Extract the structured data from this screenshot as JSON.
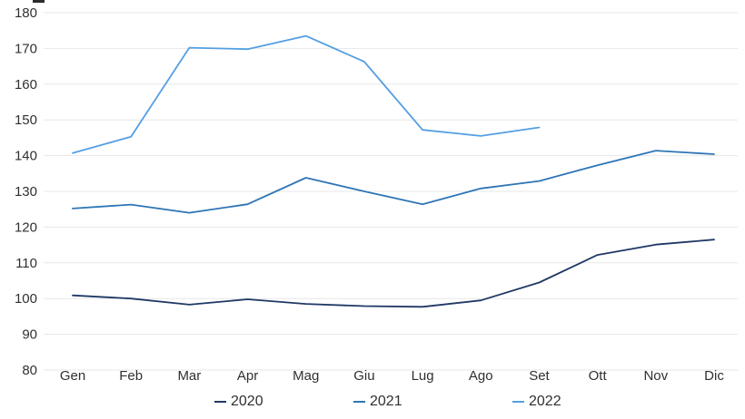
{
  "chart_data": {
    "type": "line",
    "title": "",
    "xlabel": "",
    "ylabel": "",
    "categories": [
      "Gen",
      "Feb",
      "Mar",
      "Apr",
      "Mag",
      "Giu",
      "Lug",
      "Ago",
      "Set",
      "Ott",
      "Nov",
      "Dic"
    ],
    "series": [
      {
        "name": "2020",
        "color": "#1F3864",
        "values": [
          100.9,
          100.0,
          98.3,
          99.8,
          98.5,
          97.9,
          97.7,
          99.5,
          104.5,
          112.2,
          115.1,
          116.5
        ]
      },
      {
        "name": "2021",
        "color": "#2E75B6",
        "values": [
          125.2,
          126.3,
          124.0,
          126.4,
          133.8,
          130.0,
          126.4,
          130.8,
          132.9,
          137.3,
          141.4,
          140.4
        ]
      },
      {
        "name": "2022",
        "color": "#549FE3",
        "values": [
          140.7,
          145.3,
          170.2,
          169.8,
          173.5,
          166.3,
          147.2,
          145.5,
          147.9
        ]
      }
    ],
    "ylim": [
      80,
      180
    ],
    "y_ticks": [
      180,
      170,
      160,
      150,
      140,
      130,
      120,
      110,
      100,
      90,
      80
    ],
    "grid": "horizontal",
    "gridline_color": "#E7E7E7",
    "legend_position": "bottom"
  },
  "legend": {
    "items": [
      {
        "label": "2020"
      },
      {
        "label": "2021"
      },
      {
        "label": "2022"
      }
    ]
  }
}
